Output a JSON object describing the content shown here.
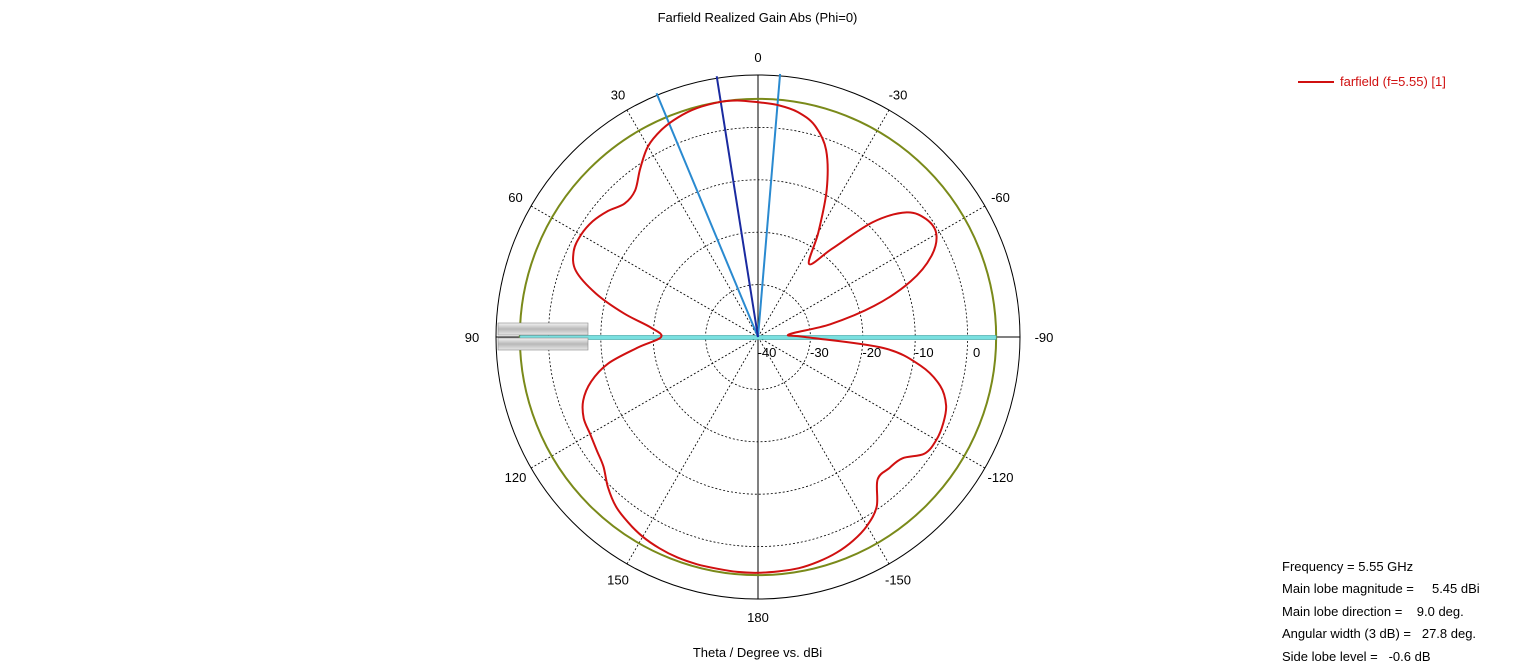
{
  "title": "Farfield Realized Gain Abs (Phi=0)",
  "xlabel": "Theta / Degree vs. dBi",
  "legend": {
    "label": "farfield (f=5.55) [1]"
  },
  "stats": [
    {
      "label": "Frequency = ",
      "value": "5.55 GHz"
    },
    {
      "label": "Main lobe magnitude = ",
      "value": "    5.45 dBi"
    },
    {
      "label": "Main lobe direction = ",
      "value": "   9.0 deg."
    },
    {
      "label": "Angular width (3 dB) = ",
      "value": "  27.8 deg."
    },
    {
      "label": "Side lobe level = ",
      "value": "  -0.6 dB"
    }
  ],
  "colors": {
    "curve": "#d01010",
    "reference_circle": "#7a8a1a",
    "main_lobe_line": "#1a2aa0",
    "beamwidth_lines": "#2a8ad0",
    "sidelobe_bar": "#7ae0e0"
  },
  "chart_data": {
    "type": "polar",
    "title": "Farfield Realized Gain Abs (Phi=0)",
    "xlabel": "Theta / Degree vs. dBi",
    "angle_ticks": [
      {
        "angle": 0,
        "label": "0"
      },
      {
        "angle": 30,
        "label": "30"
      },
      {
        "angle": 60,
        "label": "60"
      },
      {
        "angle": 90,
        "label": "90"
      },
      {
        "angle": 120,
        "label": "120"
      },
      {
        "angle": 150,
        "label": "150"
      },
      {
        "angle": 180,
        "label": "180"
      },
      {
        "angle": -150,
        "label": "-150"
      },
      {
        "angle": -120,
        "label": "-120"
      },
      {
        "angle": -90,
        "label": "-90"
      },
      {
        "angle": -60,
        "label": "-60"
      },
      {
        "angle": -30,
        "label": "-30"
      }
    ],
    "radial_range_dBi": [
      -40,
      10
    ],
    "radial_ticks": [
      {
        "value": -40,
        "label": "-40"
      },
      {
        "value": -30,
        "label": "-30"
      },
      {
        "value": -20,
        "label": "-20"
      },
      {
        "value": -10,
        "label": "-10"
      },
      {
        "value": 0,
        "label": "0"
      }
    ],
    "grid": true,
    "reference_level_dBi": 5.45,
    "main_lobe_direction_deg": 9.0,
    "beamwidth_edges_deg": [
      -4.8,
      22.6
    ],
    "series": [
      {
        "name": "farfield (f=5.55) [1]",
        "theta": [
          0,
          5,
          9,
          15,
          20,
          25,
          30,
          35,
          40,
          45,
          50,
          55,
          60,
          65,
          70,
          75,
          80,
          85,
          90,
          95,
          100,
          105,
          110,
          115,
          120,
          125,
          130,
          135,
          140,
          145,
          150,
          155,
          160,
          165,
          170,
          175,
          180,
          185,
          190,
          195,
          200,
          205,
          210,
          215,
          220,
          225,
          230,
          235,
          240,
          245,
          250,
          255,
          260,
          265,
          270,
          275,
          280,
          285,
          290,
          295,
          300,
          305,
          310,
          315,
          320,
          325,
          330,
          335,
          340,
          345,
          350,
          355
        ],
        "gain_dBi": [
          4.8,
          5.3,
          5.45,
          5.2,
          4.6,
          3.6,
          2.0,
          -0.8,
          -3.5,
          -4.0,
          -2.6,
          -1.5,
          -1.0,
          -1.2,
          -3.0,
          -8.0,
          -14.0,
          -19.5,
          -21.5,
          -17.0,
          -11.0,
          -7.0,
          -4.5,
          -3.3,
          -3.0,
          -2.4,
          -1.5,
          0.5,
          2.2,
          3.2,
          4.0,
          4.5,
          4.8,
          4.9,
          4.9,
          5.0,
          5.0,
          4.9,
          4.8,
          4.4,
          3.8,
          2.9,
          1.6,
          -0.5,
          -4.5,
          -4.6,
          -4.0,
          -1.2,
          -0.7,
          -1.0,
          -1.8,
          -4.0,
          -8.5,
          -16.0,
          -31.0,
          -34.0,
          -26.0,
          -17.0,
          -9.0,
          -3.5,
          -0.7,
          -0.8,
          -3.0,
          -9.0,
          -18.0,
          -23.0,
          -17.0,
          -9.0,
          -2.0,
          1.8,
          3.6,
          4.4
        ]
      }
    ]
  }
}
